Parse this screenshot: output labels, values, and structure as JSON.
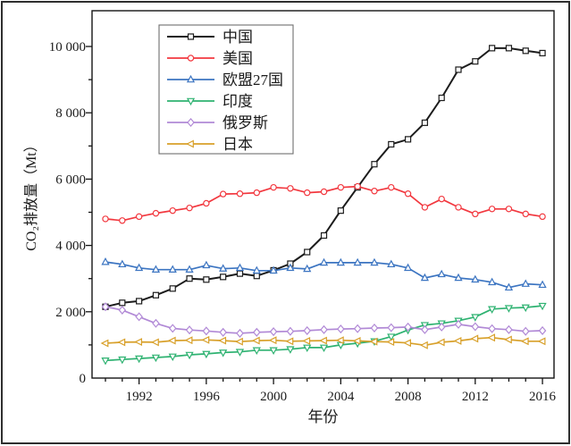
{
  "figure": {
    "background": "#ffffff",
    "outer_border_color": "#2e2e2e",
    "plot_box_color": "#141414",
    "legend_border_color": "#6e6e6e",
    "text_color": "#1a1a1a"
  },
  "chart_data": {
    "type": "line",
    "title": "",
    "xlabel": "年份",
    "ylabel": "CO₂排放量（Mt）",
    "grid": false,
    "legend_position": "upper-left-inside",
    "xlim": [
      1989.2,
      2016.7
    ],
    "ylim": [
      0,
      11000
    ],
    "x": [
      1990,
      1991,
      1992,
      1993,
      1994,
      1995,
      1996,
      1997,
      1998,
      1999,
      2000,
      2001,
      2002,
      2003,
      2004,
      2005,
      2006,
      2007,
      2008,
      2009,
      2010,
      2011,
      2012,
      2013,
      2014,
      2015,
      2016
    ],
    "x_major_ticks": [
      1992,
      1996,
      2000,
      2004,
      2008,
      2012,
      2016
    ],
    "x_tick_labels": [
      "1992",
      "1996",
      "2000",
      "2004",
      "2008",
      "2012",
      "2016"
    ],
    "y_major_ticks": [
      0,
      2000,
      4000,
      6000,
      8000,
      10000
    ],
    "y_tick_labels": [
      "0",
      "2 000",
      "4 000",
      "6 000",
      "8 000",
      "10 000"
    ],
    "y_minor_step": 1000,
    "series": [
      {
        "name": "中国",
        "color": "#1c1c1c",
        "marker": "square",
        "values": [
          2150,
          2270,
          2320,
          2500,
          2700,
          3000,
          2970,
          3050,
          3150,
          3080,
          3250,
          3450,
          3800,
          4300,
          5050,
          5750,
          6450,
          7050,
          7200,
          7700,
          8450,
          9300,
          9550,
          9950,
          9950,
          9870,
          9800
        ]
      },
      {
        "name": "美国",
        "color": "#f2383f",
        "marker": "circle",
        "values": [
          4800,
          4750,
          4870,
          4970,
          5050,
          5130,
          5270,
          5550,
          5560,
          5590,
          5750,
          5720,
          5590,
          5620,
          5750,
          5780,
          5640,
          5750,
          5560,
          5150,
          5400,
          5150,
          4950,
          5100,
          5100,
          4950,
          4870
        ]
      },
      {
        "name": "欧盟27国",
        "color": "#3b74c1",
        "marker": "triangle-up",
        "values": [
          3500,
          3430,
          3320,
          3270,
          3270,
          3270,
          3400,
          3300,
          3320,
          3240,
          3240,
          3320,
          3290,
          3480,
          3480,
          3480,
          3480,
          3430,
          3320,
          3020,
          3130,
          3020,
          2970,
          2890,
          2730,
          2840,
          2810
        ]
      },
      {
        "name": "印度",
        "color": "#2eb271",
        "marker": "triangle-down",
        "values": [
          530,
          560,
          590,
          620,
          650,
          700,
          730,
          770,
          790,
          840,
          840,
          870,
          920,
          920,
          1000,
          1050,
          1110,
          1250,
          1450,
          1600,
          1650,
          1730,
          1840,
          2080,
          2110,
          2130,
          2180
        ]
      },
      {
        "name": "俄罗斯",
        "color": "#b189d6",
        "marker": "diamond",
        "values": [
          2150,
          2050,
          1850,
          1650,
          1500,
          1450,
          1420,
          1380,
          1350,
          1380,
          1400,
          1410,
          1430,
          1460,
          1480,
          1490,
          1510,
          1520,
          1540,
          1460,
          1540,
          1620,
          1550,
          1490,
          1460,
          1410,
          1430
        ]
      },
      {
        "name": "日本",
        "color": "#d8a02a",
        "marker": "triangle-left",
        "values": [
          1050,
          1080,
          1090,
          1080,
          1130,
          1140,
          1150,
          1130,
          1100,
          1130,
          1140,
          1110,
          1120,
          1130,
          1140,
          1120,
          1100,
          1090,
          1060,
          990,
          1080,
          1120,
          1190,
          1220,
          1160,
          1110,
          1110
        ]
      }
    ]
  }
}
